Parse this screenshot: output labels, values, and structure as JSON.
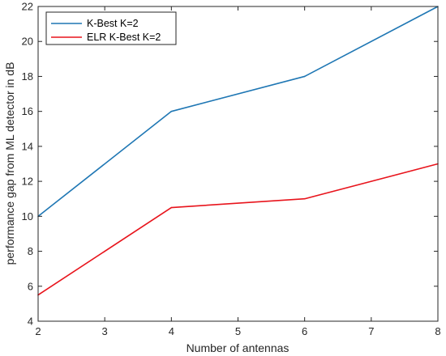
{
  "chart_data": {
    "type": "line",
    "title": "",
    "xlabel": "Number of antennas",
    "ylabel": "performance gap from ML detector in dB",
    "xlim": [
      2,
      8
    ],
    "ylim": [
      4,
      22
    ],
    "xticks": [
      "2",
      "3",
      "4",
      "5",
      "6",
      "7",
      "8"
    ],
    "yticks": [
      "4",
      "6",
      "8",
      "10",
      "12",
      "14",
      "16",
      "18",
      "20",
      "22"
    ],
    "grid": false,
    "legend_position": "top-left",
    "series": [
      {
        "name": "K-Best K=2",
        "color": "#1f77b4",
        "x": [
          2,
          4,
          6,
          8
        ],
        "y": [
          10,
          16,
          18,
          22
        ]
      },
      {
        "name": "ELR K-Best K=2",
        "color": "#e8141c",
        "x": [
          2,
          4,
          6,
          8
        ],
        "y": [
          5.5,
          10.5,
          11,
          13
        ]
      }
    ]
  }
}
